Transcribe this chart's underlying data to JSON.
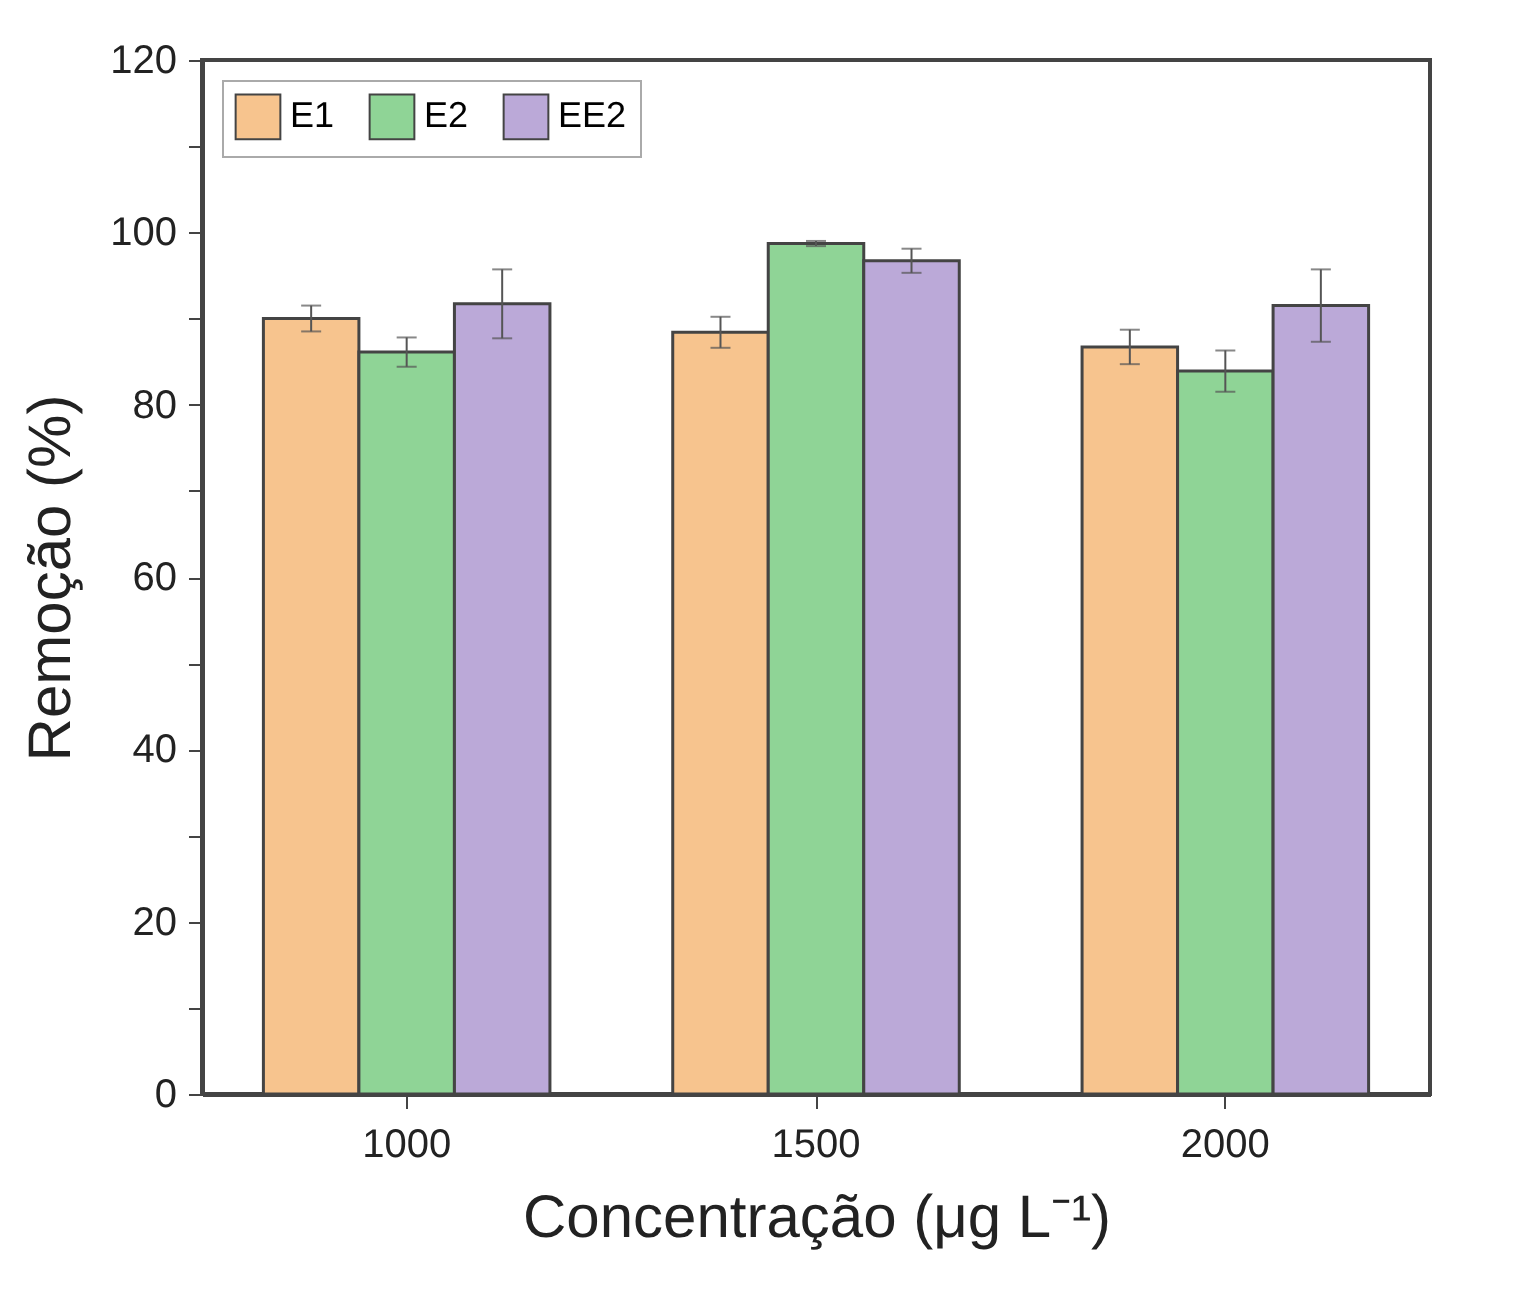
{
  "chart_data": {
    "type": "bar",
    "xlabel": "Concentração (μg L⁻¹)",
    "ylabel": "Remoção (%)",
    "categories": [
      "1000",
      "1500",
      "2000"
    ],
    "series": [
      {
        "name": "E1",
        "color": "#f7c48e",
        "values": [
          90.0,
          88.4,
          86.7
        ],
        "errors": [
          1.5,
          1.8,
          2.0
        ]
      },
      {
        "name": "E2",
        "color": "#8fd496",
        "values": [
          86.1,
          98.7,
          83.9
        ],
        "errors": [
          1.7,
          0.3,
          2.4
        ]
      },
      {
        "name": "EE2",
        "color": "#bba9d8",
        "values": [
          91.7,
          96.7,
          91.5
        ],
        "errors": [
          4.0,
          1.4,
          4.2
        ]
      }
    ],
    "ylim": [
      0,
      120
    ],
    "yticks": [
      0,
      {
        "value": 10,
        "label": null
      },
      20,
      {
        "value": 30,
        "label": null
      },
      40,
      {
        "value": 50,
        "label": null
      },
      60,
      {
        "value": 70,
        "label": null
      },
      80,
      {
        "value": 90,
        "label": null
      },
      100,
      {
        "value": 110,
        "label": null
      },
      120
    ],
    "legend": "top left",
    "grid": false
  }
}
